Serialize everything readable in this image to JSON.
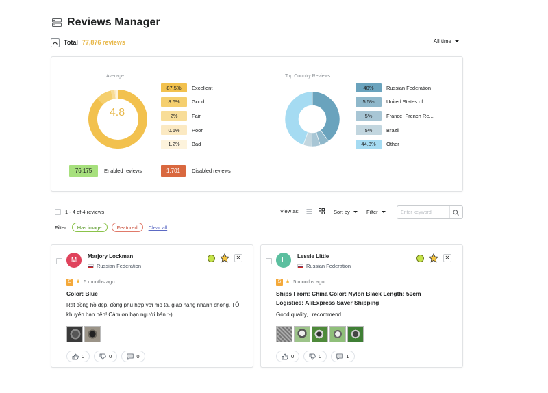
{
  "header": {
    "title": "Reviews Manager",
    "icon": "reviews-list-icon"
  },
  "summary": {
    "total_label": "Total",
    "total_count": "77,876 reviews",
    "period": "All time"
  },
  "average": {
    "title": "Average",
    "value": "4.8",
    "items": [
      {
        "value": "87.5%",
        "label": "Excellent",
        "color": "#f2c14e"
      },
      {
        "value": "8.6%",
        "label": "Good",
        "color": "#f5cf6e"
      },
      {
        "value": "2%",
        "label": "Fair",
        "color": "#f8dd98"
      },
      {
        "value": "0.6%",
        "label": "Poor",
        "color": "#fbe9c2"
      },
      {
        "value": "1.2%",
        "label": "Bad",
        "color": "#fdf3dc"
      }
    ]
  },
  "countries": {
    "title": "Top Country Reviews",
    "items": [
      {
        "value": "40%",
        "label": "Russian Federation",
        "color": "#6aa3bd"
      },
      {
        "value": "5.5%",
        "label": "United States of ...",
        "color": "#8fb8cb"
      },
      {
        "value": "5%",
        "label": "France, French Re...",
        "color": "#a8c6d5"
      },
      {
        "value": "5%",
        "label": "Brazil",
        "color": "#c2d6df"
      },
      {
        "value": "44.8%",
        "label": "Other",
        "color": "#a5dbf2"
      }
    ]
  },
  "status": {
    "enabled_count": "76,175",
    "enabled_label": "Enabled reviews",
    "disabled_count": "1,701",
    "disabled_label": "Disabled reviews"
  },
  "toolbar": {
    "count_text": "1 - 4 of 4 reviews",
    "view_as": "View as:",
    "sort_by": "Sort by",
    "filter": "Filter",
    "search_placeholder": "Enter keyword"
  },
  "filters": {
    "label": "Filter:",
    "tags": [
      "Has image",
      "Featured"
    ],
    "clear": "Clear all"
  },
  "reviews": [
    {
      "avatar_letter": "M",
      "avatar_color": "#e0435c",
      "name": "Marjory Lockman",
      "country": "Russian Federation",
      "source": "S",
      "time": "5 months ago",
      "title": "Color: Blue",
      "body": "Rất đồng hồ đẹp, đồng phù hợp với mô tả, giao hàng nhanh chóng. TÔI khuyên bạn nên! Cảm ơn bạn người bán :-)",
      "likes": "0",
      "dislikes": "0",
      "comments": "0"
    },
    {
      "avatar_letter": "L",
      "avatar_color": "#5bbf9f",
      "name": "Lessie Little",
      "country": "Russian Federation",
      "source": "S",
      "time": "5 months ago",
      "title": "Ships From: China Color: Nylon Black Length: 50cm Logistics: AliExpress Saver Shipping",
      "body": "Good quality, i recommend.",
      "likes": "0",
      "dislikes": "0",
      "comments": "1"
    }
  ]
}
